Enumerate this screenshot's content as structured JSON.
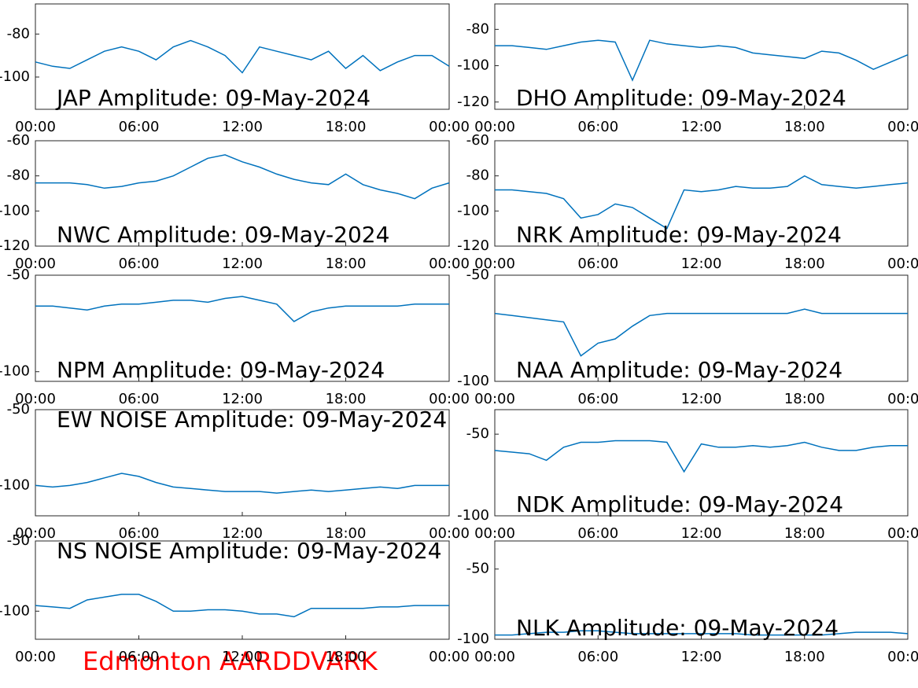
{
  "caption": "Edmonton AARDDVARK",
  "chart_data": [
    {
      "type": "line",
      "title": "JAP Amplitude: 09-May-2024",
      "x": [
        0,
        1,
        2,
        3,
        4,
        5,
        6,
        7,
        8,
        9,
        10,
        11,
        12,
        13,
        14,
        15,
        16,
        17,
        18,
        19,
        20,
        21,
        22,
        23,
        24
      ],
      "values": [
        -93,
        -95,
        -96,
        -92,
        -88,
        -86,
        -88,
        -92,
        -86,
        -83,
        -86,
        -90,
        -98,
        -86,
        -88,
        -90,
        -92,
        -88,
        -96,
        -90,
        -97,
        -93,
        -90,
        -90,
        -95
      ],
      "color": "#0072bd",
      "xlim": [
        0,
        24
      ],
      "ylim": [
        -115,
        -66
      ],
      "yticks": [
        -100,
        -80
      ],
      "xticks": [
        {
          "value": 0,
          "label": "00:00"
        },
        {
          "value": 6,
          "label": "06:00"
        },
        {
          "value": 12,
          "label": "12:00"
        },
        {
          "value": 18,
          "label": "18:00"
        },
        {
          "value": 24,
          "label": "00:00"
        }
      ]
    },
    {
      "type": "line",
      "title": "DHO Amplitude: 09-May-2024",
      "x": [
        0,
        1,
        2,
        3,
        4,
        5,
        6,
        7,
        8,
        9,
        10,
        11,
        12,
        13,
        14,
        15,
        16,
        17,
        18,
        19,
        20,
        21,
        22,
        23,
        24
      ],
      "values": [
        -89,
        -89,
        -90,
        -91,
        -89,
        -87,
        -86,
        -87,
        -108,
        -86,
        -88,
        -89,
        -90,
        -89,
        -90,
        -93,
        -94,
        -95,
        -96,
        -92,
        -93,
        -97,
        -102,
        -98,
        -94
      ],
      "color": "#0072bd",
      "xlim": [
        0,
        24
      ],
      "ylim": [
        -124,
        -66
      ],
      "yticks": [
        -120,
        -100,
        -80
      ],
      "xticks": [
        {
          "value": 0,
          "label": "00:00"
        },
        {
          "value": 6,
          "label": "06:00"
        },
        {
          "value": 12,
          "label": "12:00"
        },
        {
          "value": 18,
          "label": "18:00"
        },
        {
          "value": 24,
          "label": "00:00"
        }
      ]
    },
    {
      "type": "line",
      "title": "NWC Amplitude: 09-May-2024",
      "x": [
        0,
        1,
        2,
        3,
        4,
        5,
        6,
        7,
        8,
        9,
        10,
        11,
        12,
        13,
        14,
        15,
        16,
        17,
        18,
        19,
        20,
        21,
        22,
        23,
        24
      ],
      "values": [
        -84,
        -84,
        -84,
        -85,
        -87,
        -86,
        -84,
        -83,
        -80,
        -75,
        -70,
        -68,
        -72,
        -75,
        -79,
        -82,
        -84,
        -85,
        -79,
        -85,
        -88,
        -90,
        -93,
        -87,
        -84
      ],
      "color": "#0072bd",
      "xlim": [
        0,
        24
      ],
      "ylim": [
        -120,
        -60
      ],
      "yticks": [
        -120,
        -100,
        -80,
        -60
      ],
      "xticks": [
        {
          "value": 0,
          "label": "00:00"
        },
        {
          "value": 6,
          "label": "06:00"
        },
        {
          "value": 12,
          "label": "12:00"
        },
        {
          "value": 18,
          "label": "18:00"
        },
        {
          "value": 24,
          "label": "00:00"
        }
      ]
    },
    {
      "type": "line",
      "title": "NRK Amplitude: 09-May-2024",
      "x": [
        0,
        1,
        2,
        3,
        4,
        5,
        6,
        7,
        8,
        9,
        10,
        11,
        12,
        13,
        14,
        15,
        16,
        17,
        18,
        19,
        20,
        21,
        22,
        23,
        24
      ],
      "values": [
        -88,
        -88,
        -89,
        -90,
        -93,
        -104,
        -102,
        -96,
        -98,
        -104,
        -110,
        -88,
        -89,
        -88,
        -86,
        -87,
        -87,
        -86,
        -80,
        -85,
        -86,
        -87,
        -86,
        -85,
        -84
      ],
      "color": "#0072bd",
      "xlim": [
        0,
        24
      ],
      "ylim": [
        -120,
        -60
      ],
      "yticks": [
        -120,
        -100,
        -80,
        -60
      ],
      "xticks": [
        {
          "value": 0,
          "label": "00:00"
        },
        {
          "value": 6,
          "label": "06:00"
        },
        {
          "value": 12,
          "label": "12:00"
        },
        {
          "value": 18,
          "label": "18:00"
        },
        {
          "value": 24,
          "label": "00:00"
        }
      ]
    },
    {
      "type": "line",
      "title": "NPM Amplitude: 09-May-2024",
      "x": [
        0,
        1,
        2,
        3,
        4,
        5,
        6,
        7,
        8,
        9,
        10,
        11,
        12,
        13,
        14,
        15,
        16,
        17,
        18,
        19,
        20,
        21,
        22,
        23,
        24
      ],
      "values": [
        -66,
        -66,
        -67,
        -68,
        -66,
        -65,
        -65,
        -64,
        -63,
        -63,
        -64,
        -62,
        -61,
        -63,
        -65,
        -74,
        -69,
        -67,
        -66,
        -66,
        -66,
        -66,
        -65,
        -65,
        -65
      ],
      "color": "#0072bd",
      "xlim": [
        0,
        24
      ],
      "ylim": [
        -105,
        -50
      ],
      "yticks": [
        -100,
        -50
      ],
      "xticks": [
        {
          "value": 0,
          "label": "00:00"
        },
        {
          "value": 6,
          "label": "06:00"
        },
        {
          "value": 12,
          "label": "12:00"
        },
        {
          "value": 18,
          "label": "18:00"
        },
        {
          "value": 24,
          "label": "00:00"
        }
      ]
    },
    {
      "type": "line",
      "title": "NAA Amplitude: 09-May-2024",
      "x": [
        0,
        1,
        2,
        3,
        4,
        5,
        6,
        7,
        8,
        9,
        10,
        11,
        12,
        13,
        14,
        15,
        16,
        17,
        18,
        19,
        20,
        21,
        22,
        23,
        24
      ],
      "values": [
        -68,
        -69,
        -70,
        -71,
        -72,
        -88,
        -82,
        -80,
        -74,
        -69,
        -68,
        -68,
        -68,
        -68,
        -68,
        -68,
        -68,
        -68,
        -66,
        -68,
        -68,
        -68,
        -68,
        -68,
        -68
      ],
      "color": "#0072bd",
      "xlim": [
        0,
        24
      ],
      "ylim": [
        -100,
        -50
      ],
      "yticks": [
        -100,
        -50
      ],
      "xticks": [
        {
          "value": 0,
          "label": "00:00"
        },
        {
          "value": 6,
          "label": "06:00"
        },
        {
          "value": 12,
          "label": "12:00"
        },
        {
          "value": 18,
          "label": "18:00"
        },
        {
          "value": 24,
          "label": "00:00"
        }
      ]
    },
    {
      "type": "line",
      "title": "EW NOISE Amplitude: 09-May-2024",
      "x": [
        0,
        1,
        2,
        3,
        4,
        5,
        6,
        7,
        8,
        9,
        10,
        11,
        12,
        13,
        14,
        15,
        16,
        17,
        18,
        19,
        20,
        21,
        22,
        23,
        24
      ],
      "values": [
        -100,
        -101,
        -100,
        -98,
        -95,
        -92,
        -94,
        -98,
        -101,
        -102,
        -103,
        -104,
        -104,
        -104,
        -105,
        -104,
        -103,
        -104,
        -103,
        -102,
        -101,
        -102,
        -100,
        -100,
        -100
      ],
      "color": "#0072bd",
      "xlim": [
        0,
        24
      ],
      "ylim": [
        -120,
        -50
      ],
      "yticks": [
        -100,
        -50
      ],
      "xticks": [
        {
          "value": 0,
          "label": "00:00"
        },
        {
          "value": 6,
          "label": "06:00"
        },
        {
          "value": 12,
          "label": "12:00"
        },
        {
          "value": 18,
          "label": "18:00"
        },
        {
          "value": 24,
          "label": "00:00"
        }
      ]
    },
    {
      "type": "line",
      "title": "NDK Amplitude: 09-May-2024",
      "x": [
        0,
        1,
        2,
        3,
        4,
        5,
        6,
        7,
        8,
        9,
        10,
        11,
        12,
        13,
        14,
        15,
        16,
        17,
        18,
        19,
        20,
        21,
        22,
        23,
        24
      ],
      "values": [
        -60,
        -61,
        -62,
        -66,
        -58,
        -55,
        -55,
        -54,
        -54,
        -54,
        -55,
        -73,
        -56,
        -58,
        -58,
        -57,
        -58,
        -57,
        -55,
        -58,
        -60,
        -60,
        -58,
        -57,
        -57
      ],
      "color": "#0072bd",
      "xlim": [
        0,
        24
      ],
      "ylim": [
        -100,
        -35
      ],
      "yticks": [
        -100,
        -50
      ],
      "xticks": [
        {
          "value": 0,
          "label": "00:00"
        },
        {
          "value": 6,
          "label": "06:00"
        },
        {
          "value": 12,
          "label": "12:00"
        },
        {
          "value": 18,
          "label": "18:00"
        },
        {
          "value": 24,
          "label": "00:00"
        }
      ]
    },
    {
      "type": "line",
      "title": "NS NOISE Amplitude: 09-May-2024",
      "x": [
        0,
        1,
        2,
        3,
        4,
        5,
        6,
        7,
        8,
        9,
        10,
        11,
        12,
        13,
        14,
        15,
        16,
        17,
        18,
        19,
        20,
        21,
        22,
        23,
        24
      ],
      "values": [
        -96,
        -97,
        -98,
        -92,
        -90,
        -88,
        -88,
        -93,
        -100,
        -100,
        -99,
        -99,
        -100,
        -102,
        -102,
        -104,
        -98,
        -98,
        -98,
        -98,
        -97,
        -97,
        -96,
        -96,
        -96
      ],
      "color": "#0072bd",
      "xlim": [
        0,
        24
      ],
      "ylim": [
        -120,
        -50
      ],
      "yticks": [
        -100,
        -50
      ],
      "xticks": [
        {
          "value": 0,
          "label": "00:00"
        },
        {
          "value": 6,
          "label": "06:00"
        },
        {
          "value": 12,
          "label": "12:00"
        },
        {
          "value": 18,
          "label": "18:00"
        },
        {
          "value": 24,
          "label": "00:00"
        }
      ]
    },
    {
      "type": "line",
      "title": "NLK Amplitude: 09-May-2024",
      "x": [
        0,
        1,
        2,
        3,
        4,
        5,
        6,
        7,
        8,
        9,
        10,
        11,
        12,
        13,
        14,
        15,
        16,
        17,
        18,
        19,
        20,
        21,
        22,
        23,
        24
      ],
      "values": [
        -97,
        -97,
        -96,
        -95,
        -95,
        -94,
        -94,
        -95,
        -96,
        -96,
        -96,
        -96,
        -96,
        -96,
        -96,
        -97,
        -97,
        -97,
        -97,
        -97,
        -96,
        -95,
        -95,
        -95,
        -96
      ],
      "color": "#0072bd",
      "xlim": [
        0,
        24
      ],
      "ylim": [
        -100,
        -30
      ],
      "yticks": [
        -100,
        -50
      ],
      "xticks": [
        {
          "value": 0,
          "label": "00:00"
        },
        {
          "value": 6,
          "label": "06:00"
        },
        {
          "value": 12,
          "label": "12:00"
        },
        {
          "value": 18,
          "label": "18:00"
        },
        {
          "value": 24,
          "label": "00:00"
        }
      ]
    }
  ]
}
